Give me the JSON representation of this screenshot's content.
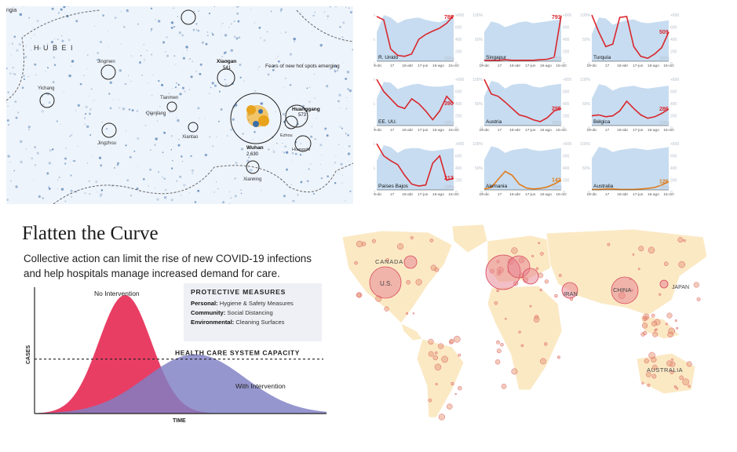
{
  "hubei_map": {
    "region_label": "H U B E I",
    "corner_label": "ngia",
    "note": "Fears of new hot spots emerging",
    "cities": [
      {
        "name": "Xiaogan",
        "value": "541"
      },
      {
        "name": "Wuhan",
        "value": "2,630"
      },
      {
        "name": "Huanggang",
        "value": "573"
      },
      {
        "name": "Yichang",
        "value": ""
      },
      {
        "name": "Jingmen",
        "value": ""
      },
      {
        "name": "Jingzhou",
        "value": ""
      },
      {
        "name": "Tianmen",
        "value": ""
      },
      {
        "name": "Qianjiang",
        "value": ""
      },
      {
        "name": "Xiantao",
        "value": ""
      },
      {
        "name": "Ezhou",
        "value": ""
      },
      {
        "name": "Huangshi",
        "value": ""
      },
      {
        "name": "Xianning",
        "value": ""
      }
    ],
    "colors": {
      "background": "#eef4fb",
      "dots": "#3c6fa8",
      "hotspot": "#e8a21c"
    }
  },
  "chart_data": [
    {
      "type": "area",
      "title": "",
      "x_tick_labels": [
        "19-dic",
        "17",
        "18-abr",
        "17-jun",
        "16-ago",
        "15-oct"
      ],
      "y_tick_labels_left": [
        "100%",
        "50%",
        "0"
      ],
      "y_tick_labels_right": [
        "+800",
        "600",
        "400",
        "200",
        "0"
      ],
      "series": [
        {
          "country": "R. Unido",
          "value_label": "786",
          "right_label": "100%",
          "profile": [
            0.92,
            0.85,
            0.25,
            0.12,
            0.1,
            0.15,
            0.45,
            0.55,
            0.62,
            0.68,
            0.78,
            0.94
          ],
          "mobility": [
            0.6,
            0.95,
            0.9,
            0.78,
            0.85,
            0.88,
            0.9,
            0.85,
            0.82,
            0.8,
            0.86,
            0.88
          ],
          "line_color": "#d9262c"
        },
        {
          "country": "Singapur",
          "value_label": "791",
          "right_label": "100%",
          "profile": [
            0.02,
            0.02,
            0.02,
            0.03,
            0.02,
            0.02,
            0.02,
            0.02,
            0.03,
            0.04,
            0.08,
            0.94
          ],
          "mobility": [
            0.6,
            0.82,
            0.78,
            0.7,
            0.75,
            0.8,
            0.82,
            0.78,
            0.8,
            0.82,
            0.84,
            0.86
          ],
          "line_color": "#d9262c"
        },
        {
          "country": "Turquía",
          "value_label": "509",
          "right_label": "147%",
          "profile": [
            0.95,
            0.6,
            0.3,
            0.35,
            0.9,
            0.92,
            0.3,
            0.1,
            0.06,
            0.15,
            0.28,
            0.6
          ],
          "mobility": [
            0.55,
            0.9,
            0.88,
            0.75,
            0.8,
            0.84,
            0.86,
            0.8,
            0.78,
            0.8,
            0.82,
            0.84
          ],
          "line_color": "#d9262c"
        },
        {
          "country": "EE. UU.",
          "value_label": "390",
          "right_label": "105%",
          "profile": [
            0.95,
            0.7,
            0.55,
            0.4,
            0.35,
            0.55,
            0.45,
            0.3,
            0.12,
            0.3,
            0.6,
            0.45
          ],
          "mobility": [
            0.55,
            0.9,
            0.88,
            0.75,
            0.8,
            0.84,
            0.86,
            0.82,
            0.8,
            0.8,
            0.82,
            0.84
          ],
          "line_color": "#d9262c"
        },
        {
          "country": "Austria",
          "value_label": "296",
          "right_label": "100%",
          "profile": [
            0.95,
            0.65,
            0.6,
            0.48,
            0.35,
            0.22,
            0.18,
            0.12,
            0.08,
            0.16,
            0.3,
            0.35
          ],
          "mobility": [
            0.6,
            0.92,
            0.88,
            0.76,
            0.84,
            0.86,
            0.86,
            0.8,
            0.78,
            0.82,
            0.84,
            0.86
          ],
          "line_color": "#d9262c"
        },
        {
          "country": "Bélgica",
          "value_label": "286",
          "right_label": "128%",
          "profile": [
            0.2,
            0.22,
            0.18,
            0.2,
            0.3,
            0.5,
            0.35,
            0.22,
            0.15,
            0.18,
            0.25,
            0.34
          ],
          "mobility": [
            0.55,
            0.85,
            0.82,
            0.72,
            0.78,
            0.8,
            0.82,
            0.78,
            0.76,
            0.78,
            0.8,
            0.82
          ],
          "line_color": "#d9262c"
        },
        {
          "country": "Países Bajos",
          "value_label": "212",
          "right_label": "100%",
          "profile": [
            0.95,
            0.7,
            0.6,
            0.52,
            0.3,
            0.12,
            0.08,
            0.1,
            0.55,
            0.7,
            0.2,
            0.24
          ],
          "mobility": [
            0.6,
            0.92,
            0.88,
            0.76,
            0.84,
            0.86,
            0.86,
            0.82,
            0.8,
            0.82,
            0.84,
            0.86
          ],
          "line_color": "#d9262c"
        },
        {
          "country": "Alemania",
          "value_label": "142",
          "right_label": "100%",
          "profile": [
            0.02,
            0.05,
            0.22,
            0.38,
            0.3,
            0.12,
            0.04,
            0.02,
            0.03,
            0.06,
            0.12,
            0.2
          ],
          "mobility": [
            0.62,
            0.9,
            0.86,
            0.76,
            0.82,
            0.84,
            0.86,
            0.82,
            0.8,
            0.82,
            0.84,
            0.86
          ],
          "line_color": "#e07b1a"
        },
        {
          "country": "Australia",
          "value_label": "126",
          "right_label": "100%",
          "profile": [
            0.01,
            0.01,
            0.02,
            0.02,
            0.01,
            0.01,
            0.01,
            0.02,
            0.03,
            0.05,
            0.1,
            0.17
          ],
          "mobility": [
            0.65,
            0.88,
            0.86,
            0.78,
            0.82,
            0.84,
            0.86,
            0.84,
            0.82,
            0.84,
            0.86,
            0.88
          ],
          "line_color": "#e07b1a"
        }
      ],
      "colors": {
        "area": "#c7dcf0",
        "grid_text": "#b8c0cc"
      }
    },
    {
      "type": "area",
      "title": "Flatten the Curve",
      "subtitle": "Collective action can limit the rise of new COVID-19 infections and help hospitals manage increased demand for care.",
      "xlabel": "TIME",
      "ylabel": "CASES",
      "capacity_label": "HEALTH CARE SYSTEM CAPACITY",
      "capacity_level": 0.46,
      "series": [
        {
          "name": "No Intervention",
          "peak_x": 0.31,
          "peak_y": 1.0,
          "spread": 0.09,
          "color": "#e8345c"
        },
        {
          "name": "With Intervention",
          "peak_x": 0.55,
          "peak_y": 0.5,
          "spread": 0.17,
          "color": "#7f7fc4"
        }
      ],
      "measures": {
        "heading": "PROTECTIVE MEASURES",
        "items": [
          {
            "label": "Personal:",
            "text": "Hygiene & Safety Measures"
          },
          {
            "label": "Community:",
            "text": "Social Distancing"
          },
          {
            "label": "Environmental:",
            "text": "Cleaning Surfaces"
          }
        ]
      }
    },
    {
      "type": "scatter",
      "title": "",
      "labels": [
        "CANADA",
        "U.S.",
        "IRAN",
        "CHINA",
        "JAPAN",
        "AUSTRALIA"
      ],
      "colors": {
        "land": "#fbe9c4",
        "border": "#ffffff",
        "bubble": "#e8808f",
        "bubble_stroke": "#d9475c",
        "dot": "#e8a080"
      }
    }
  ]
}
